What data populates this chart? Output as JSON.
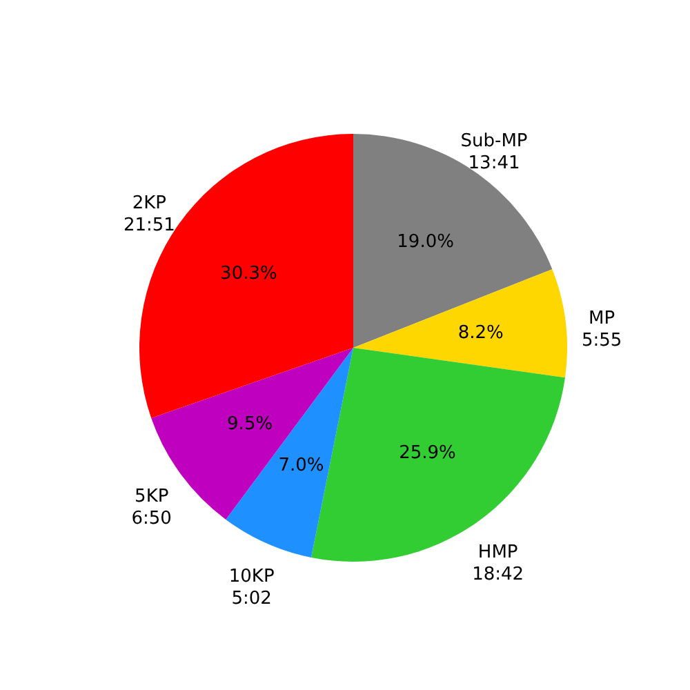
{
  "chart_data": {
    "type": "pie",
    "categories": [
      "Sub-MP\n13:41",
      "MP\n5:55",
      "HMP\n18:42",
      "10KP\n5:02",
      "5KP\n6:50",
      "2KP\n21:51"
    ],
    "values": [
      19.0,
      8.2,
      25.9,
      7.0,
      9.5,
      30.3
    ],
    "colors": [
      "#808080",
      "#ffd700",
      "#32cd32",
      "#1e90ff",
      "#bf00bf",
      "#ff0000"
    ],
    "value_labels": [
      "19.0%",
      "8.2%",
      "25.9%",
      "7.0%",
      "9.5%",
      "30.3%"
    ]
  }
}
